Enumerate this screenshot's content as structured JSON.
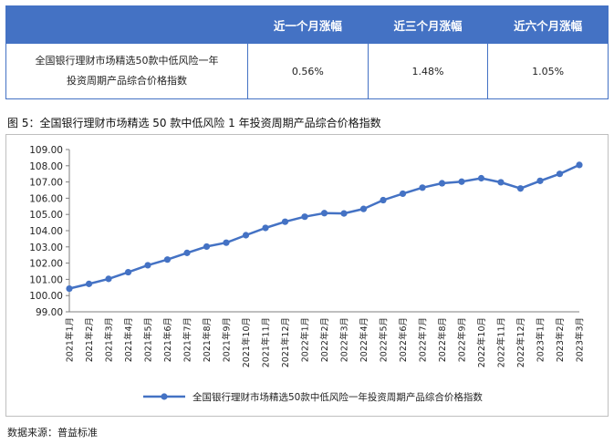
{
  "table": {
    "headers": [
      "",
      "近一个月涨幅",
      "近三个月涨幅",
      "近六个月涨幅"
    ],
    "row": {
      "label_line1": "全国银行理财市场精选50款中低风险一年",
      "label_line2": "投资周期产品综合价格指数",
      "values": [
        "0.56%",
        "1.48%",
        "1.05%"
      ]
    }
  },
  "figure_title": "图 5：全国银行理财市场精选 50 款中低风险 1 年投资周期产品综合价格指数",
  "source": "数据来源：普益标准",
  "chart_data": {
    "type": "line",
    "categories": [
      "2021年1月",
      "2021年2月",
      "2021年3月",
      "2021年4月",
      "2021年5月",
      "2021年6月",
      "2021年7月",
      "2021年8月",
      "2021年9月",
      "2021年10月",
      "2021年11月",
      "2021年12月",
      "2022年1月",
      "2022年2月",
      "2022年3月",
      "2022年4月",
      "2022年5月",
      "2022年6月",
      "2022年7月",
      "2022年8月",
      "2022年9月",
      "2022年10月",
      "2022年11月",
      "2022年12月",
      "2023年1月",
      "2023年2月",
      "2023年3月"
    ],
    "series": [
      {
        "name": "全国银行理财市场精选50款中低风险一年投资周期产品综合价格指数",
        "color": "#4472c4",
        "values": [
          100.43,
          100.72,
          101.03,
          101.44,
          101.87,
          102.22,
          102.63,
          103.02,
          103.26,
          103.72,
          104.17,
          104.55,
          104.86,
          105.08,
          105.06,
          105.34,
          105.88,
          106.28,
          106.65,
          106.92,
          107.02,
          107.23,
          106.98,
          106.6,
          107.07,
          107.5,
          108.05
        ]
      }
    ],
    "yticks": [
      "109.00",
      "108.00",
      "107.00",
      "106.00",
      "105.00",
      "104.00",
      "103.00",
      "102.00",
      "101.00",
      "100.00",
      "99.00"
    ],
    "ylim": [
      99,
      109
    ],
    "grid": false,
    "legend": "bottom"
  }
}
